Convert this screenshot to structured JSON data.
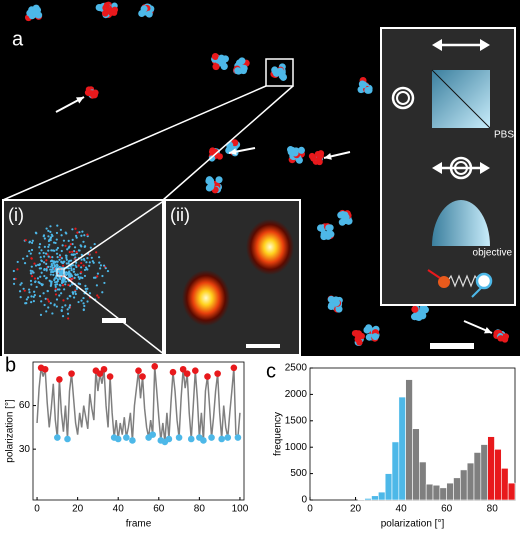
{
  "panel_a": {
    "label": "a",
    "inset_labels": [
      "(i)",
      "(ii)"
    ],
    "schematic_labels": [
      "PBS",
      "objective"
    ]
  },
  "chart_data": [
    {
      "type": "line",
      "panel_label": "b",
      "x_label": "frame",
      "y_label": "polarization [°]",
      "x": [
        0,
        1,
        2,
        3,
        4,
        5,
        6,
        7,
        8,
        9,
        10,
        11,
        12,
        13,
        14,
        15,
        16,
        17,
        18,
        19,
        20,
        21,
        22,
        23,
        24,
        25,
        26,
        27,
        28,
        29,
        30,
        31,
        32,
        33,
        34,
        35,
        36,
        37,
        38,
        39,
        40,
        41,
        42,
        43,
        44,
        45,
        46,
        47,
        48,
        49,
        50,
        51,
        52,
        53,
        54,
        55,
        56,
        57,
        58,
        59,
        60,
        61,
        62,
        63,
        64,
        65,
        66,
        67,
        68,
        69,
        70,
        71,
        72,
        73,
        74,
        75,
        76,
        77,
        78,
        79,
        80,
        81,
        82,
        83,
        84,
        85,
        86,
        87,
        88,
        89,
        90,
        91,
        92,
        93,
        94,
        95,
        96,
        97,
        98,
        99,
        100
      ],
      "series": [
        {
          "color": "#7f7f7f",
          "values": [
            48,
            72,
            86,
            80,
            85,
            62,
            45,
            58,
            75,
            50,
            38,
            78,
            55,
            42,
            60,
            37,
            70,
            82,
            65,
            48,
            40,
            55,
            45,
            60,
            52,
            44,
            68,
            58,
            50,
            84,
            70,
            82,
            75,
            85,
            60,
            45,
            80,
            55,
            38,
            50,
            37,
            48,
            40,
            52,
            38,
            45,
            55,
            36,
            60,
            72,
            84,
            65,
            80,
            58,
            45,
            38,
            50,
            40,
            87,
            70,
            52,
            36,
            48,
            35,
            55,
            37,
            62,
            83,
            70,
            50,
            38,
            65,
            85,
            72,
            82,
            55,
            37,
            60,
            84,
            65,
            38,
            55,
            36,
            70,
            80,
            60,
            38,
            52,
            70,
            82,
            55,
            37,
            60,
            45,
            38,
            55,
            70,
            86,
            40,
            38,
            55
          ]
        },
        {
          "color": "#e8191c",
          "marker": true,
          "x": [
            2,
            4,
            11,
            17,
            29,
            31,
            33,
            36,
            50,
            52,
            58,
            67,
            72,
            74,
            78,
            84,
            89,
            97
          ],
          "values": [
            86,
            85,
            78,
            82,
            84,
            82,
            85,
            80,
            84,
            80,
            87,
            83,
            85,
            82,
            84,
            80,
            82,
            86
          ]
        },
        {
          "color": "#4db8e8",
          "marker": true,
          "x": [
            10,
            15,
            38,
            40,
            44,
            47,
            55,
            57,
            61,
            63,
            65,
            70,
            76,
            80,
            82,
            86,
            91,
            94,
            99
          ],
          "values": [
            38,
            37,
            38,
            37,
            38,
            36,
            38,
            40,
            36,
            35,
            37,
            38,
            37,
            38,
            36,
            38,
            37,
            38,
            38
          ]
        }
      ],
      "xlim": [
        -2,
        102
      ],
      "xticks": [
        0,
        20,
        40,
        60,
        80,
        100
      ],
      "ylim": [
        -5,
        90
      ],
      "yticks": [
        30,
        60
      ]
    },
    {
      "type": "histogram",
      "panel_label": "c",
      "x_label": "polarization [°]",
      "y_label": "frequency",
      "bins": [
        21,
        24,
        27,
        30,
        33,
        36,
        39,
        42,
        45,
        48,
        51,
        54,
        57,
        60,
        63,
        66,
        69,
        72,
        75,
        78,
        81,
        84,
        87,
        90
      ],
      "values": [
        10,
        30,
        80,
        150,
        500,
        1100,
        1950,
        2280,
        1350,
        720,
        300,
        280,
        230,
        320,
        420,
        570,
        700,
        900,
        1050,
        1200,
        960,
        600,
        320
      ],
      "colors": [
        "#4db8e8",
        "#4db8e8",
        "#4db8e8",
        "#4db8e8",
        "#4db8e8",
        "#4db8e8",
        "#4db8e8",
        "#7f7f7f",
        "#7f7f7f",
        "#7f7f7f",
        "#7f7f7f",
        "#7f7f7f",
        "#7f7f7f",
        "#7f7f7f",
        "#7f7f7f",
        "#7f7f7f",
        "#7f7f7f",
        "#7f7f7f",
        "#7f7f7f",
        "#e8191c",
        "#e8191c",
        "#e8191c",
        "#e8191c"
      ],
      "xlim": [
        0,
        90
      ],
      "xticks": [
        0,
        20,
        40,
        60,
        80
      ],
      "ylim": [
        0,
        2500
      ],
      "yticks": [
        0,
        500,
        1000,
        1500,
        2000,
        2500
      ]
    }
  ]
}
